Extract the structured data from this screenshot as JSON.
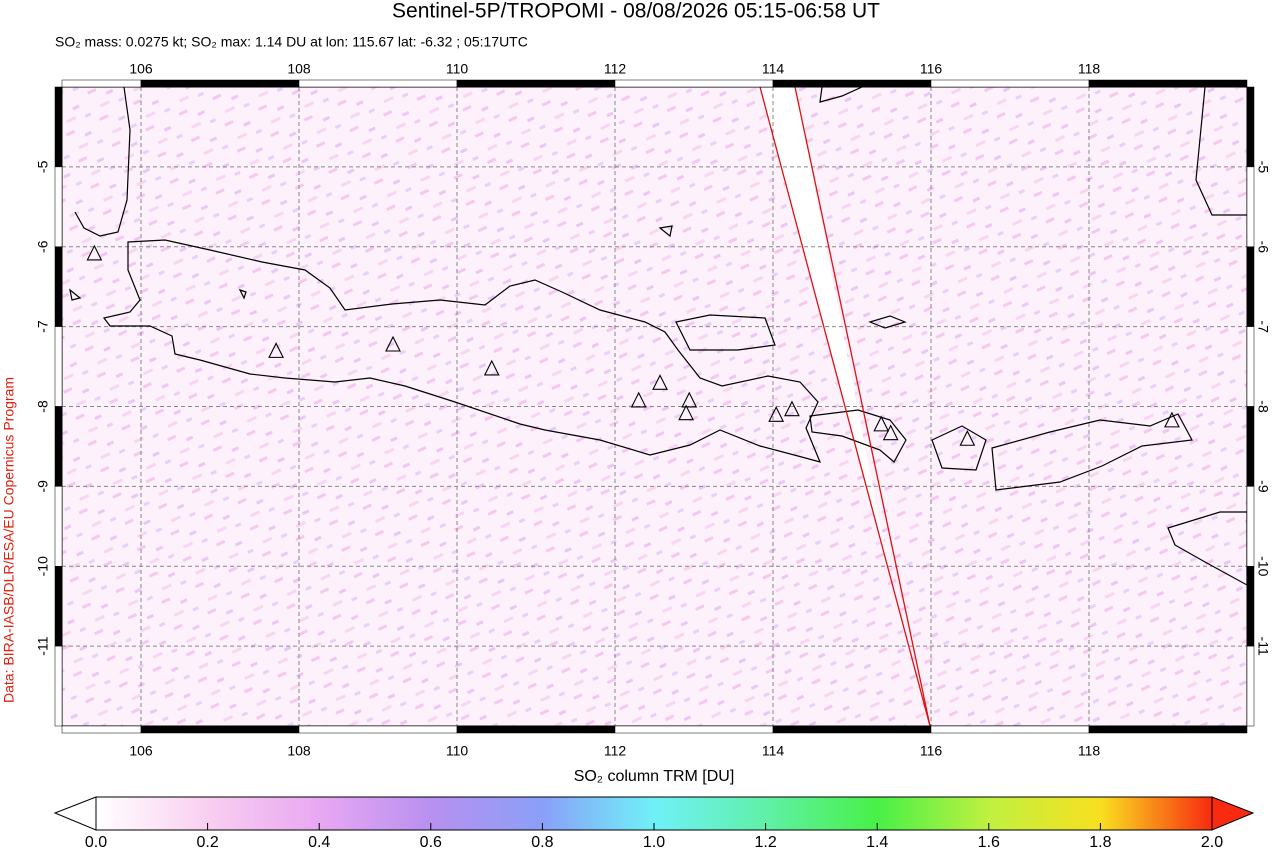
{
  "header": {
    "title": "Sentinel-5P/TROPOMI - 08/08/2026 05:15-06:58 UT",
    "subtitle": "SO₂ mass: 0.0275 kt; SO₂ max: 1.14 DU at lon: 115.67 lat: -6.32 ; 05:17UTC",
    "credit": "Data: BIRA-IASB/DLR/ESA/EU Copernicus Program"
  },
  "map": {
    "xlim": [
      105,
      120
    ],
    "ylim": [
      -12,
      -4
    ],
    "xticks": [
      106,
      108,
      110,
      112,
      114,
      116,
      118
    ],
    "yticks": [
      -5,
      -6,
      -7,
      -8,
      -9,
      -10,
      -11
    ],
    "grid": true,
    "volcanoes": [
      {
        "lon": 105.41,
        "lat": -6.09
      },
      {
        "lon": 107.71,
        "lat": -7.31
      },
      {
        "lon": 109.19,
        "lat": -7.23
      },
      {
        "lon": 110.44,
        "lat": -7.53
      },
      {
        "lon": 112.3,
        "lat": -7.93
      },
      {
        "lon": 112.57,
        "lat": -7.71
      },
      {
        "lon": 112.94,
        "lat": -7.93
      },
      {
        "lon": 112.9,
        "lat": -8.09
      },
      {
        "lon": 114.04,
        "lat": -8.11
      },
      {
        "lon": 114.24,
        "lat": -8.04
      },
      {
        "lon": 115.37,
        "lat": -8.23
      },
      {
        "lon": 115.49,
        "lat": -8.34
      },
      {
        "lon": 116.46,
        "lat": -8.41
      },
      {
        "lon": 119.05,
        "lat": -8.18
      }
    ]
  },
  "colorbar": {
    "label": "SO₂ column TRM [DU]",
    "lim": [
      0,
      2
    ],
    "ticks": [
      {
        "value": 0,
        "label": "0.0"
      },
      0.2,
      0.4,
      0.6,
      0.8,
      {
        "value": 1,
        "label": "1.0"
      },
      1.2,
      1.4,
      1.6,
      1.8,
      {
        "value": 2,
        "label": "2.0"
      }
    ]
  }
}
